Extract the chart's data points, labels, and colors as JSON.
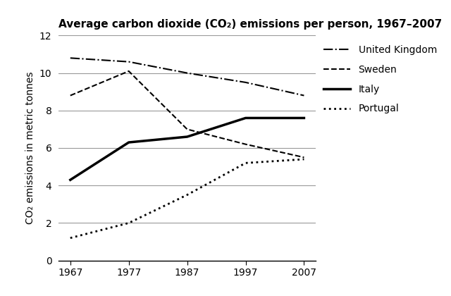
{
  "title": "Average carbon dioxide (CO₂) emissions per person, 1967–2007",
  "ylabel": "CO₂ emissions in metric tonnes",
  "years": [
    1967,
    1977,
    1987,
    1997,
    2007
  ],
  "series": {
    "United Kingdom": {
      "values": [
        10.8,
        10.6,
        10.0,
        9.5,
        8.8
      ],
      "linestyle": "-.",
      "linewidth": 1.5,
      "color": "#000000"
    },
    "Sweden": {
      "values": [
        8.8,
        10.1,
        7.0,
        6.2,
        5.5
      ],
      "linestyle": "--",
      "linewidth": 1.5,
      "color": "#000000"
    },
    "Italy": {
      "values": [
        4.3,
        6.3,
        6.6,
        7.6,
        7.6
      ],
      "linestyle": "-",
      "linewidth": 2.5,
      "color": "#000000"
    },
    "Portugal": {
      "values": [
        1.2,
        2.0,
        3.5,
        5.2,
        5.4
      ],
      "linestyle": ":",
      "linewidth": 2.0,
      "color": "#000000"
    }
  },
  "ylim": [
    0,
    12
  ],
  "yticks": [
    0,
    2,
    4,
    6,
    8,
    10,
    12
  ],
  "xticks": [
    1967,
    1977,
    1987,
    1997,
    2007
  ],
  "background_color": "#ffffff",
  "grid_color": "#999999",
  "title_fontsize": 11,
  "label_fontsize": 10,
  "tick_fontsize": 10,
  "legend_fontsize": 10
}
